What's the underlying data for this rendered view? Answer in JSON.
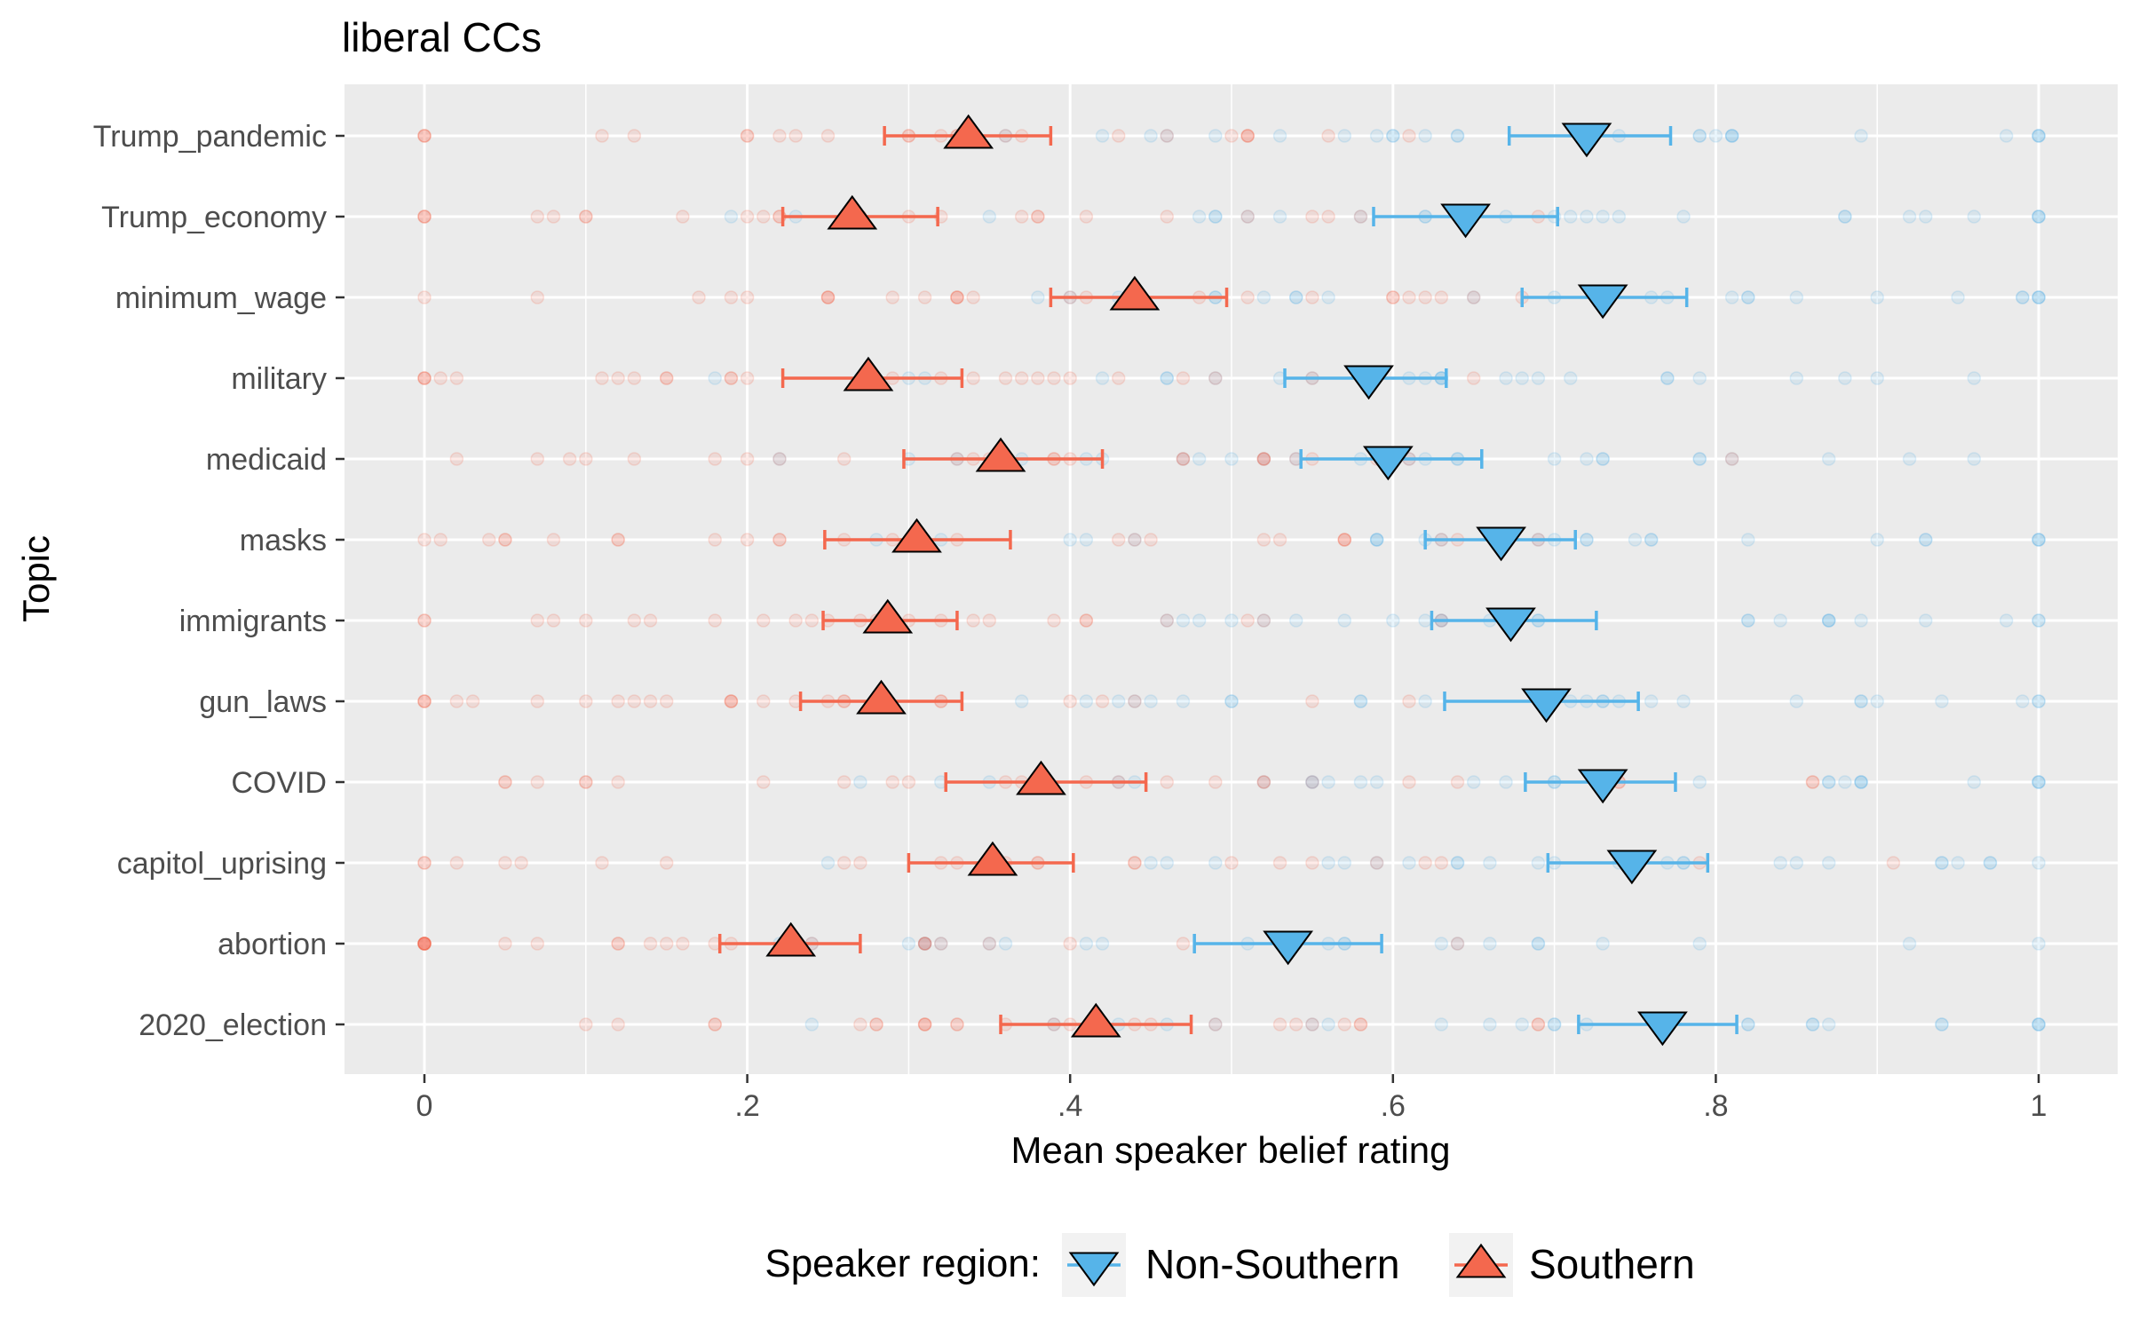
{
  "chart_data": {
    "type": "scatter",
    "title": "liberal CCs",
    "xlabel": "Mean speaker belief rating",
    "ylabel": "Topic",
    "xlim": [
      -0.05,
      1.04
    ],
    "xticks": [
      0,
      0.2,
      0.4,
      0.6,
      0.8,
      1
    ],
    "xtick_labels": [
      "0",
      ".2",
      ".4",
      ".6",
      ".8",
      "1"
    ],
    "grid": true,
    "legend_title": "Speaker region:",
    "legend_position": "bottom",
    "categories": [
      "Trump_pandemic",
      "Trump_economy",
      "minimum_wage",
      "military",
      "medicaid",
      "masks",
      "immigrants",
      "gun_laws",
      "COVID",
      "capitol_uprising",
      "abortion",
      "2020_election"
    ],
    "series": [
      {
        "name": "Non-Southern",
        "color": "#56B4E9",
        "marker": "triangle-down",
        "means": [
          0.72,
          0.645,
          0.73,
          0.585,
          0.597,
          0.667,
          0.673,
          0.695,
          0.73,
          0.748,
          0.535,
          0.767
        ],
        "ci_low": [
          0.672,
          0.588,
          0.68,
          0.533,
          0.543,
          0.62,
          0.624,
          0.632,
          0.682,
          0.696,
          0.477,
          0.715
        ],
        "ci_high": [
          0.772,
          0.702,
          0.782,
          0.633,
          0.655,
          0.713,
          0.726,
          0.752,
          0.775,
          0.795,
          0.593,
          0.813
        ]
      },
      {
        "name": "Southern",
        "color": "#F4684E",
        "marker": "triangle-up",
        "means": [
          0.337,
          0.265,
          0.44,
          0.275,
          0.357,
          0.305,
          0.287,
          0.283,
          0.382,
          0.352,
          0.227,
          0.416
        ],
        "ci_low": [
          0.285,
          0.222,
          0.388,
          0.222,
          0.297,
          0.248,
          0.247,
          0.233,
          0.323,
          0.3,
          0.183,
          0.357
        ],
        "ci_high": [
          0.388,
          0.318,
          0.497,
          0.333,
          0.42,
          0.363,
          0.33,
          0.333,
          0.447,
          0.402,
          0.27,
          0.475
        ]
      }
    ]
  }
}
